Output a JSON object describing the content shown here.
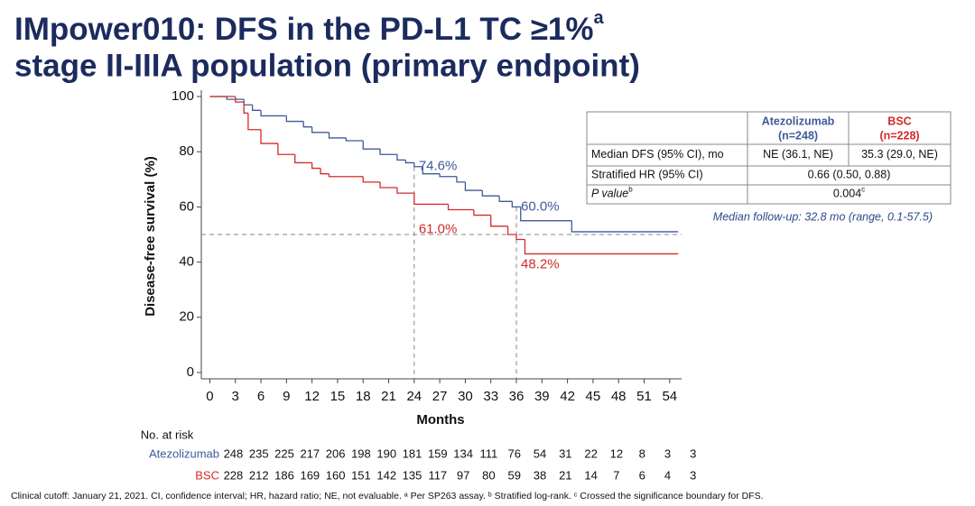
{
  "chart_data": {
    "type": "km",
    "title": [
      "IMpower010: DFS in the PD-L1 TC ≥1%",
      "stage II-IIIA population (primary endpoint)"
    ],
    "title_note": "a",
    "x_label": "Months",
    "y_label": "Disease-free survival (%)",
    "xlim": [
      -1,
      55.4
    ],
    "ylim": [
      -2.3,
      102.3
    ],
    "xticks": [
      0,
      3,
      6,
      9,
      12,
      15,
      18,
      21,
      24,
      27,
      30,
      33,
      36,
      39,
      42,
      45,
      48,
      51,
      54
    ],
    "yticks": [
      0,
      20,
      40,
      60,
      80,
      100
    ],
    "series": [
      {
        "name": "Atezolizumab",
        "color": "#3e5a9a",
        "x": [
          0,
          2,
          4,
          5,
          6,
          9,
          11,
          12,
          14,
          16,
          18,
          20,
          22,
          23,
          24,
          25,
          27,
          29,
          30,
          32,
          34,
          35.5,
          36.5,
          42.5,
          55
        ],
        "values": [
          100,
          99,
          97,
          95,
          93,
          91,
          89,
          87,
          85,
          84,
          81,
          79,
          77,
          76,
          74.6,
          72,
          71,
          69,
          66,
          64,
          62,
          60,
          55,
          51,
          51
        ]
      },
      {
        "name": "BSC",
        "color": "#d42a2a",
        "x": [
          0,
          3,
          4,
          4.5,
          6,
          8,
          10,
          12,
          13,
          14,
          18,
          20,
          22,
          24,
          28,
          31,
          33,
          35,
          36,
          37,
          55
        ],
        "values": [
          100,
          98,
          94,
          88,
          83,
          79,
          76,
          74,
          72,
          71,
          69,
          67,
          65,
          61,
          59,
          57,
          53,
          50,
          48.2,
          43,
          43
        ]
      }
    ],
    "annotations": [
      {
        "series": "Atezolizumab",
        "x": 24,
        "value": 74.6,
        "label": "74.6%"
      },
      {
        "series": "Atezolizumab",
        "x": 36,
        "value": 60,
        "label": "60.0%"
      },
      {
        "series": "BSC",
        "x": 24,
        "value": 61,
        "label": "61.0%"
      },
      {
        "series": "BSC",
        "x": 36,
        "value": 48.2,
        "label": "48.2%"
      }
    ],
    "reference_lines": {
      "y": 50,
      "x": [
        24,
        36
      ]
    },
    "table": {
      "columns": [
        {
          "name": "Atezolizumab",
          "n": "(n=248)",
          "color": "#3e5a9a"
        },
        {
          "name": "BSC",
          "n": "(n=228)",
          "color": "#d42a2a"
        }
      ],
      "rows": [
        {
          "label": "Median DFS (95% CI), mo",
          "cells": [
            "NE (36.1, NE)",
            "35.3 (29.0, NE)"
          ]
        },
        {
          "label": "Stratified HR (95% CI)",
          "cells": [
            "0.66 (0.50, 0.88)"
          ]
        },
        {
          "label": "P value",
          "label_note": "b",
          "cells": [
            "0.004"
          ],
          "cell_note": "c"
        }
      ]
    },
    "follow_up": "Median follow-up: 32.8 mo (range, 0.1-57.5)",
    "risk_table": {
      "title": "No. at risk",
      "rows": [
        {
          "name": "Atezolizumab",
          "values": [
            248,
            235,
            225,
            217,
            206,
            198,
            190,
            181,
            159,
            134,
            111,
            76,
            54,
            31,
            22,
            12,
            8,
            3,
            3
          ]
        },
        {
          "name": "BSC",
          "values": [
            228,
            212,
            186,
            169,
            160,
            151,
            142,
            135,
            117,
            97,
            80,
            59,
            38,
            21,
            14,
            7,
            6,
            4,
            3
          ]
        }
      ]
    },
    "footnote": "Clinical cutoff: January 21, 2021. CI, confidence interval; HR, hazard ratio; NE, not evaluable. ᵃ Per SP263 assay. ᵇ Stratified log-rank. ᶜ Crossed the significance boundary for DFS."
  }
}
